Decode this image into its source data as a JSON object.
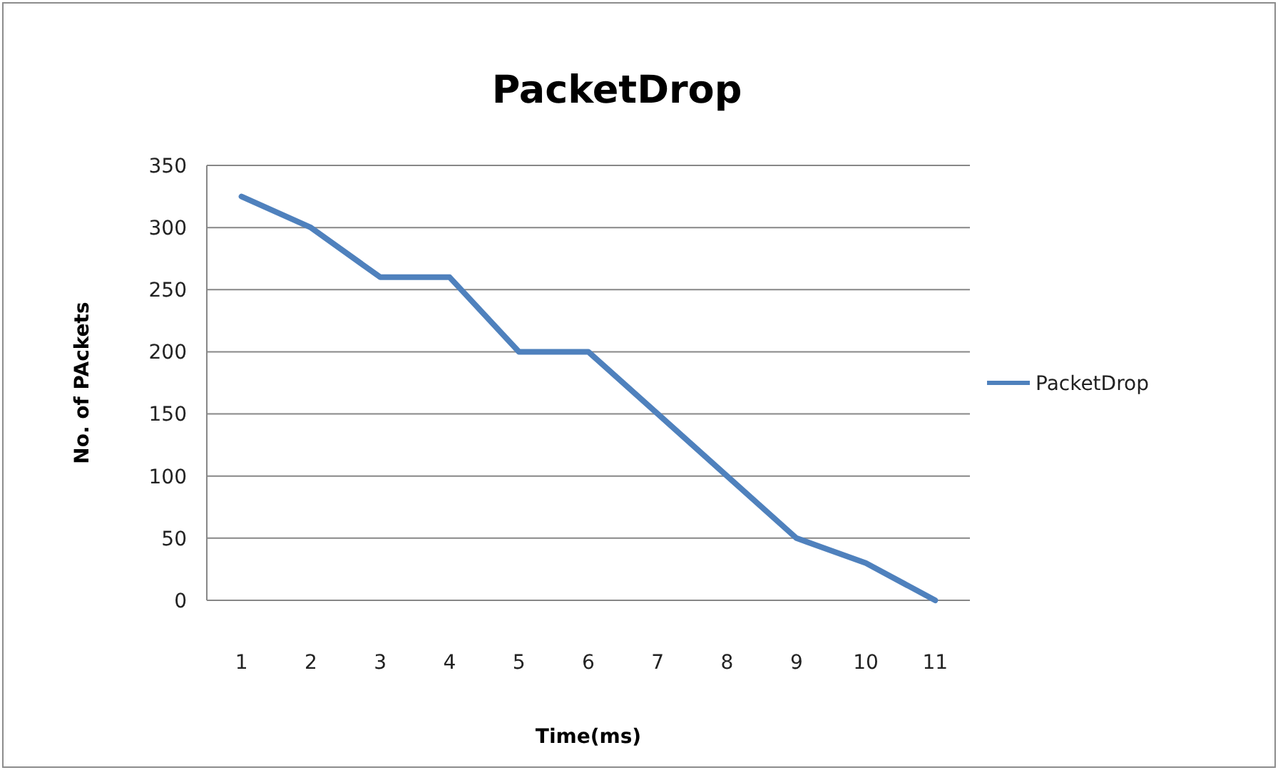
{
  "chart_data": {
    "type": "line",
    "title": "PacketDrop",
    "xlabel": "Time(ms)",
    "ylabel": "No. of PAckets",
    "categories": [
      "1",
      "2",
      "3",
      "4",
      "5",
      "6",
      "7",
      "8",
      "9",
      "10",
      "11"
    ],
    "series": [
      {
        "name": "PacketDrop",
        "color": "#4f81bd",
        "values": [
          325,
          300,
          260,
          260,
          200,
          200,
          150,
          100,
          50,
          30,
          0
        ]
      }
    ],
    "ylim": [
      0,
      350
    ],
    "yticks": [
      0,
      50,
      100,
      150,
      200,
      250,
      300,
      350
    ],
    "grid": "y",
    "legend": "right",
    "marker": "none",
    "line_style": "solid"
  }
}
